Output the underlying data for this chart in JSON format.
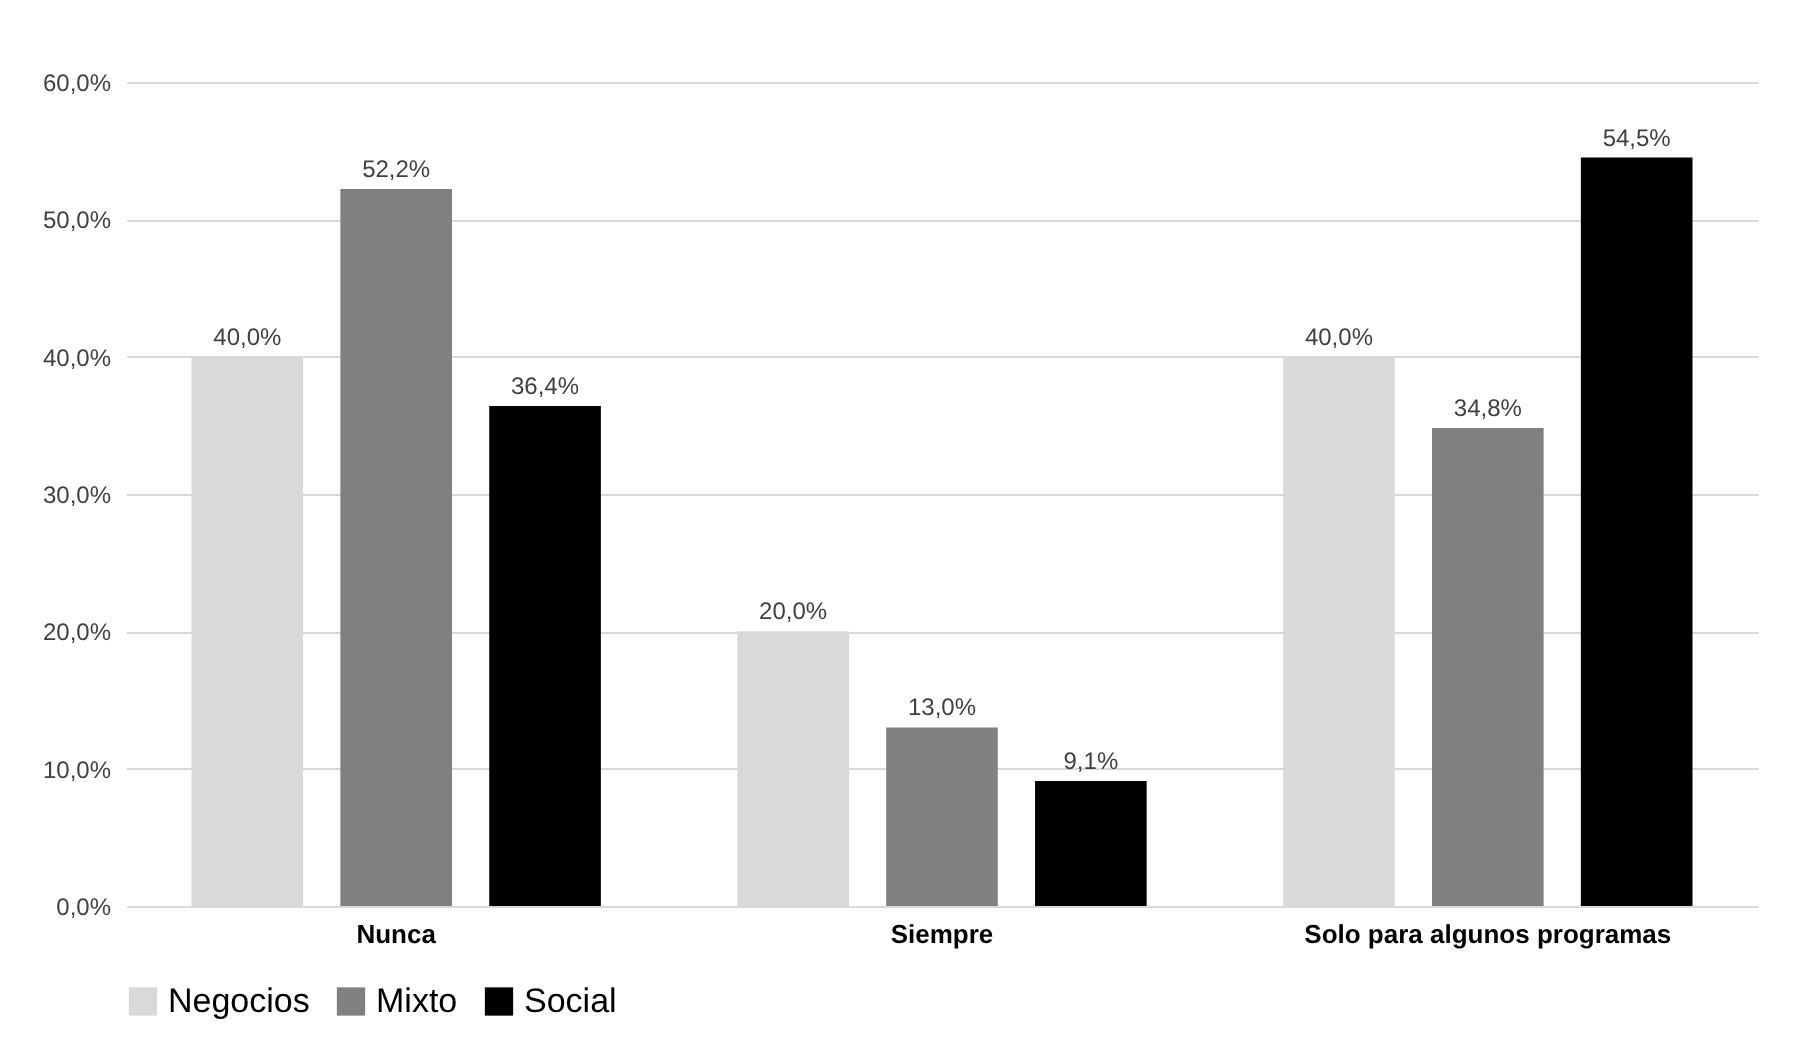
{
  "chart_data": {
    "type": "bar",
    "categories": [
      "Nunca",
      "Siempre",
      "Solo para algunos programas"
    ],
    "series": [
      {
        "name": "Negocios",
        "color": "#d9d9d9",
        "values": [
          40.0,
          20.0,
          40.0
        ],
        "value_labels": [
          "40,0%",
          "20,0%",
          "40,0%"
        ]
      },
      {
        "name": "Mixto",
        "color": "#808080",
        "values": [
          52.2,
          13.0,
          34.8
        ],
        "value_labels": [
          "52,2%",
          "13,0%",
          "34,8%"
        ]
      },
      {
        "name": "Social",
        "color": "#000000",
        "values": [
          36.4,
          9.1,
          54.5
        ],
        "value_labels": [
          "36,4%",
          "9,1%",
          "54,5%"
        ]
      }
    ],
    "ylim": [
      0,
      60
    ],
    "yticks": [
      {
        "value": 0,
        "label": "0,0%"
      },
      {
        "value": 10,
        "label": "10,0%"
      },
      {
        "value": 20,
        "label": "20,0%"
      },
      {
        "value": 30,
        "label": "30,0%"
      },
      {
        "value": 40,
        "label": "40,0%"
      },
      {
        "value": 50,
        "label": "50,0%"
      },
      {
        "value": 60,
        "label": "60,0%"
      }
    ],
    "grid": "y",
    "legend": "bottom"
  }
}
